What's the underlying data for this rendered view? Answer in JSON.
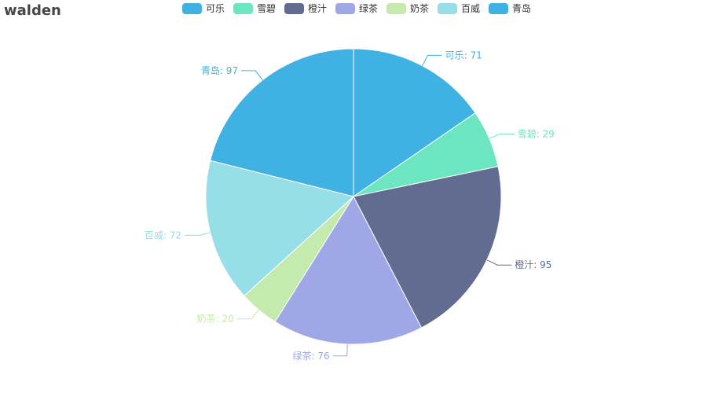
{
  "title": "walden",
  "colors": {
    "background": "#ffffff",
    "title": "#464646",
    "legend_text": "#333333"
  },
  "chart_data": {
    "type": "pie",
    "title": "walden",
    "legend_placement": "top-center",
    "label_separator": ": ",
    "slices": [
      {
        "name": "可乐",
        "value": 71,
        "color": "#3fb1e3"
      },
      {
        "name": "雪碧",
        "value": 29,
        "color": "#6be6c1"
      },
      {
        "name": "橙汁",
        "value": 95,
        "color": "#626c91"
      },
      {
        "name": "绿茶",
        "value": 76,
        "color": "#a0a7e6"
      },
      {
        "name": "奶茶",
        "value": 20,
        "color": "#c4ebad"
      },
      {
        "name": "百威",
        "value": 72,
        "color": "#96dee8"
      },
      {
        "name": "青岛",
        "value": 97,
        "color": "#3fb1e3"
      }
    ]
  }
}
